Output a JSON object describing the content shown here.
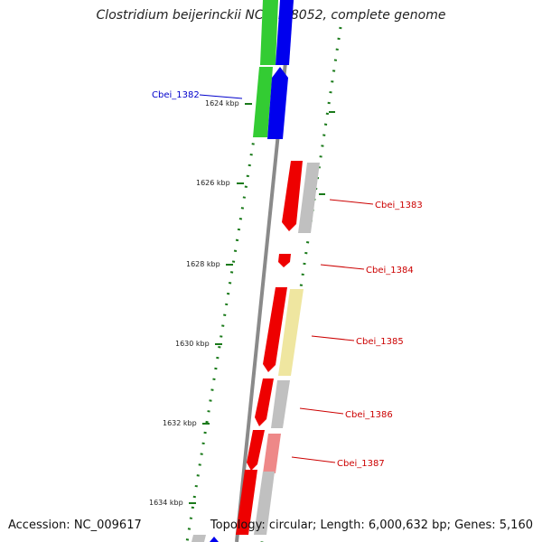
{
  "title": "Clostridium beijerinckii NCIMB 8052, complete genome",
  "footer": {
    "accession": "Accession: NC_009617",
    "summary": "Topology: circular; Length: 6,000,632 bp; Genes: 5,160"
  },
  "axis_ticks": [
    "1624 kbp",
    "1626 kbp",
    "1628 kbp",
    "1630 kbp",
    "1632 kbp",
    "1634 kbp"
  ],
  "gene_labels": [
    {
      "text": "Cbei_1382",
      "color": "#0000cc"
    },
    {
      "text": "Cbei_1383",
      "color": "#cc0000"
    },
    {
      "text": "Cbei_1384",
      "color": "#cc0000"
    },
    {
      "text": "Cbei_1385",
      "color": "#cc0000"
    },
    {
      "text": "Cbei_1386",
      "color": "#cc0000"
    },
    {
      "text": "Cbei_1387",
      "color": "#cc0000"
    }
  ],
  "colors": {
    "backbone": "#8a8a8a",
    "gc_dots": "#1a7a1a",
    "forward_cog": "#ee0000",
    "blue_gene": "#0000ee",
    "green_gene": "#33cc33",
    "gray_gene": "#c0c0c0",
    "yellow_gene": "#efe6a0",
    "pink_gene": "#ee8888"
  }
}
